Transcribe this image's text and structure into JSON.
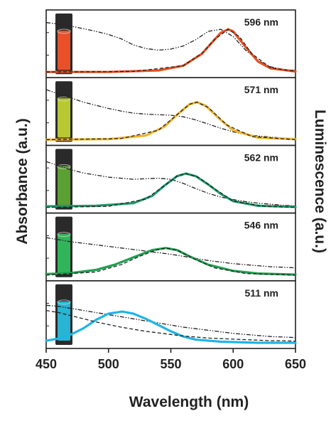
{
  "chart_data": {
    "type": "line",
    "title": "",
    "xlabel": "Wavelength (nm)",
    "ylabel_left": "Absorbance (a.u.)",
    "ylabel_right": "Luminescence (a.u.)",
    "xlim": [
      450,
      650
    ],
    "xticks": [
      450,
      500,
      550,
      600,
      650
    ],
    "ylim": [
      0,
      1
    ],
    "grid": false,
    "legend": "none",
    "panels": [
      {
        "label": "596 nm",
        "vial_color": "#e8502a",
        "emission_color": "#e8501e",
        "emission": {
          "x": [
            450,
            500,
            540,
            560,
            575,
            585,
            590,
            596,
            600,
            610,
            620,
            630,
            650
          ],
          "y": [
            0.0,
            0.0,
            0.03,
            0.12,
            0.35,
            0.62,
            0.75,
            0.82,
            0.78,
            0.48,
            0.2,
            0.07,
            0.01
          ]
        },
        "absorbance": {
          "x": [
            450,
            460,
            470,
            480,
            490,
            500,
            510,
            520,
            530,
            540,
            550,
            560,
            570,
            580,
            590,
            600,
            610,
            620,
            630,
            640,
            650
          ],
          "y": [
            0.95,
            0.92,
            0.88,
            0.83,
            0.78,
            0.72,
            0.64,
            0.52,
            0.45,
            0.42,
            0.44,
            0.5,
            0.62,
            0.78,
            0.82,
            0.68,
            0.42,
            0.22,
            0.1,
            0.05,
            0.03
          ]
        },
        "fit": {
          "x": [
            450,
            520,
            560,
            575,
            585,
            596,
            605,
            615,
            630,
            650
          ],
          "y": [
            0.0,
            0.01,
            0.12,
            0.36,
            0.62,
            0.82,
            0.68,
            0.35,
            0.08,
            0.01
          ]
        }
      },
      {
        "label": "571 nm",
        "vial_color": "#b8c832",
        "emission_color": "#f0b428",
        "emission": {
          "x": [
            450,
            500,
            530,
            545,
            555,
            565,
            571,
            578,
            590,
            600,
            620,
            650
          ],
          "y": [
            0.0,
            0.01,
            0.08,
            0.25,
            0.48,
            0.68,
            0.72,
            0.65,
            0.38,
            0.18,
            0.04,
            0.01
          ]
        },
        "absorbance": {
          "x": [
            450,
            460,
            470,
            480,
            490,
            500,
            510,
            520,
            530,
            540,
            550,
            560,
            570,
            580,
            590,
            600,
            610,
            620,
            630,
            640,
            650
          ],
          "y": [
            0.96,
            0.88,
            0.8,
            0.72,
            0.66,
            0.6,
            0.55,
            0.51,
            0.49,
            0.48,
            0.47,
            0.44,
            0.38,
            0.3,
            0.22,
            0.15,
            0.1,
            0.07,
            0.05,
            0.03,
            0.02
          ]
        },
        "fit": {
          "x": [
            450,
            510,
            540,
            555,
            565,
            571,
            580,
            595,
            615,
            650
          ],
          "y": [
            0.0,
            0.02,
            0.18,
            0.48,
            0.68,
            0.72,
            0.62,
            0.28,
            0.06,
            0.0
          ]
        }
      },
      {
        "label": "562 nm",
        "vial_color": "#5aa032",
        "emission_color": "#1a9a6a",
        "emission": {
          "x": [
            450,
            490,
            520,
            535,
            545,
            555,
            562,
            570,
            580,
            590,
            600,
            620,
            650
          ],
          "y": [
            0.02,
            0.03,
            0.08,
            0.22,
            0.42,
            0.6,
            0.65,
            0.6,
            0.44,
            0.26,
            0.12,
            0.03,
            0.01
          ]
        },
        "absorbance": {
          "x": [
            450,
            460,
            470,
            480,
            490,
            500,
            510,
            520,
            530,
            540,
            550,
            560,
            570,
            580,
            590,
            600,
            610,
            620,
            630,
            640,
            650
          ],
          "y": [
            0.88,
            0.8,
            0.72,
            0.66,
            0.62,
            0.58,
            0.56,
            0.54,
            0.55,
            0.56,
            0.54,
            0.46,
            0.36,
            0.27,
            0.2,
            0.15,
            0.11,
            0.08,
            0.06,
            0.04,
            0.03
          ]
        },
        "fit": {
          "x": [
            450,
            500,
            530,
            545,
            555,
            562,
            572,
            585,
            600,
            625,
            650
          ],
          "y": [
            0.0,
            0.02,
            0.16,
            0.42,
            0.6,
            0.65,
            0.58,
            0.36,
            0.12,
            0.02,
            0.0
          ]
        }
      },
      {
        "label": "546 nm",
        "vial_color": "#32b45a",
        "emission_color": "#1ea050",
        "emission": {
          "x": [
            450,
            470,
            490,
            505,
            520,
            535,
            546,
            555,
            565,
            580,
            600,
            620,
            650
          ],
          "y": [
            0.02,
            0.04,
            0.1,
            0.2,
            0.34,
            0.48,
            0.52,
            0.48,
            0.36,
            0.2,
            0.08,
            0.03,
            0.01
          ]
        },
        "absorbance": {
          "x": [
            450,
            460,
            470,
            480,
            490,
            500,
            510,
            520,
            530,
            540,
            550,
            560,
            570,
            580,
            590,
            600,
            610,
            620,
            630,
            640,
            650
          ],
          "y": [
            0.72,
            0.68,
            0.64,
            0.61,
            0.58,
            0.55,
            0.52,
            0.49,
            0.46,
            0.43,
            0.4,
            0.36,
            0.32,
            0.28,
            0.25,
            0.22,
            0.2,
            0.18,
            0.16,
            0.15,
            0.14
          ]
        },
        "fit": {
          "x": [
            450,
            490,
            510,
            525,
            538,
            546,
            555,
            568,
            585,
            610,
            650
          ],
          "y": [
            0.0,
            0.06,
            0.2,
            0.36,
            0.48,
            0.52,
            0.48,
            0.32,
            0.14,
            0.03,
            0.0
          ]
        }
      },
      {
        "label": "511 nm",
        "vial_color": "#28b4d2",
        "emission_color": "#1eb4e6",
        "emission": {
          "x": [
            450,
            460,
            470,
            480,
            490,
            500,
            511,
            520,
            530,
            540,
            550,
            560,
            570,
            590,
            620,
            650
          ],
          "y": [
            0.04,
            0.08,
            0.16,
            0.28,
            0.44,
            0.56,
            0.6,
            0.56,
            0.46,
            0.34,
            0.22,
            0.12,
            0.06,
            0.02,
            0.0,
            0.0
          ]
        },
        "absorbance": {
          "x": [
            450,
            460,
            470,
            480,
            490,
            500,
            510,
            520,
            530,
            540,
            550,
            560,
            570,
            580,
            590,
            600,
            610,
            620,
            630,
            640,
            650
          ],
          "y": [
            0.72,
            0.7,
            0.66,
            0.62,
            0.58,
            0.54,
            0.5,
            0.46,
            0.42,
            0.38,
            0.34,
            0.3,
            0.27,
            0.24,
            0.21,
            0.18,
            0.16,
            0.14,
            0.12,
            0.11,
            0.1
          ]
        },
        "fit": {
          "x": [
            450,
            460,
            470,
            480,
            490,
            500,
            510,
            520,
            530,
            540,
            550,
            560,
            570,
            580,
            590,
            600,
            610,
            620,
            630,
            640,
            650
          ],
          "y": [
            0.62,
            0.58,
            0.52,
            0.46,
            0.4,
            0.35,
            0.3,
            0.26,
            0.22,
            0.19,
            0.16,
            0.13,
            0.11,
            0.09,
            0.08,
            0.07,
            0.06,
            0.05,
            0.04,
            0.04,
            0.03
          ]
        }
      }
    ]
  }
}
